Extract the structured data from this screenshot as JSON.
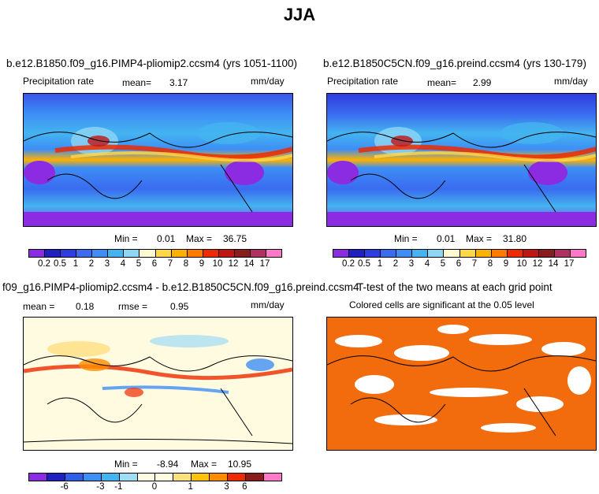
{
  "figure": {
    "title": "JJA"
  },
  "panels": [
    {
      "title": "b.e12.B1850.f09_g16.PIMP4-pliomip2.ccsm4 (yrs 1051-1100)",
      "variable": "Precipitation rate",
      "stat_label": "mean=",
      "stat_value": "3.17",
      "units": "mm/day",
      "min_label": "Min =",
      "min_value": "0.01",
      "max_label": "Max =",
      "max_value": "36.75",
      "colorbar": [
        "#8b2be2",
        "#2020c0",
        "#2e3de0",
        "#3a6bf0",
        "#3d8ef5",
        "#44b4f0",
        "#8ed6f5",
        "#fffad0",
        "#ffd84a",
        "#ffb100",
        "#ff7a00",
        "#ee2a00",
        "#c01515",
        "#8a1c1c",
        "#b03060",
        "#ff79c8"
      ],
      "ticks": [
        "0.2",
        "0.5",
        "1",
        "2",
        "3",
        "4",
        "5",
        "6",
        "7",
        "8",
        "9",
        "10",
        "12",
        "14",
        "17"
      ]
    },
    {
      "title": "b.e12.B1850C5CN.f09_g16.preind.ccsm4 (yrs 130-179)",
      "variable": "Precipitation rate",
      "stat_label": "mean=",
      "stat_value": "2.99",
      "units": "mm/day",
      "min_label": "Min =",
      "min_value": "0.01",
      "max_label": "Max =",
      "max_value": "31.80",
      "colorbar": [
        "#8b2be2",
        "#2020c0",
        "#2e3de0",
        "#3a6bf0",
        "#3d8ef5",
        "#44b4f0",
        "#8ed6f5",
        "#fffad0",
        "#ffd84a",
        "#ffb100",
        "#ff7a00",
        "#ee2a00",
        "#c01515",
        "#8a1c1c",
        "#b03060",
        "#ff79c8"
      ],
      "ticks": [
        "0.2",
        "0.5",
        "1",
        "2",
        "3",
        "4",
        "5",
        "6",
        "7",
        "8",
        "9",
        "10",
        "12",
        "14",
        "17"
      ]
    },
    {
      "title": "f09_g16.PIMP4-pliomip2.ccsm4 - b.e12.B1850C5CN.f09_g16.preind.ccsm4",
      "stat_label": "mean =",
      "stat_value": "0.18",
      "rmse_label": "rmse =",
      "rmse_value": "0.95",
      "units": "mm/day",
      "min_label": "Min =",
      "min_value": "-8.94",
      "max_label": "Max =",
      "max_value": "10.95",
      "colorbar": [
        "#8b2be2",
        "#2020c0",
        "#2e5fe6",
        "#3d8ef5",
        "#44b4f0",
        "#9fdcf5",
        "#fffbe0",
        "#fffbe0",
        "#ffe080",
        "#ffc20a",
        "#ff8c00",
        "#ee2a00",
        "#8a1c1c",
        "#ff79c8"
      ],
      "ticks": [
        "-6",
        "-3",
        "-1",
        "0",
        "1",
        "3",
        "6"
      ]
    },
    {
      "title": "T-test of the two means at each grid point",
      "subtitle": "Colored cells are significant at the 0.05 level",
      "fill_color": "#f26b0c"
    }
  ]
}
